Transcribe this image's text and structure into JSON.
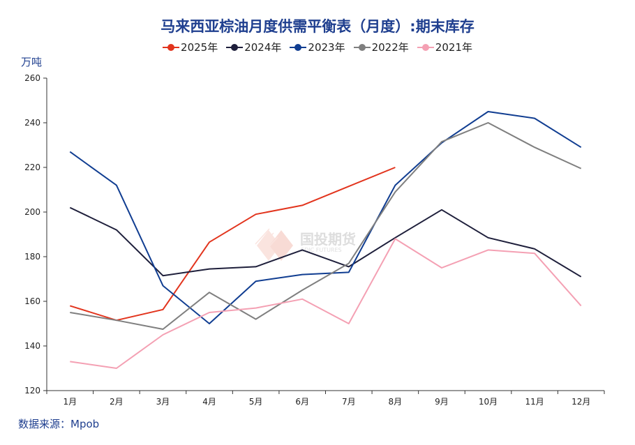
{
  "title": "马来西亚棕油月度供需平衡表（月度）:期末库存",
  "unit_label": "万吨",
  "source": "数据来源：Mpob",
  "watermark": {
    "cn": "国投期货",
    "en": "SDIC FUTURES"
  },
  "chart_data": {
    "type": "line",
    "title": "马来西亚棕油月度供需平衡表（月度）:期末库存",
    "ylabel": "万吨",
    "xlabel": "",
    "categories": [
      "1月",
      "2月",
      "3月",
      "4月",
      "5月",
      "6月",
      "7月",
      "8月",
      "9月",
      "10月",
      "11月",
      "12月"
    ],
    "ylim": [
      120,
      260
    ],
    "yticks": [
      120,
      140,
      160,
      180,
      200,
      220,
      240,
      260
    ],
    "legend_position": "top-center",
    "grid": false,
    "series": [
      {
        "name": "2025年",
        "color": "#e2341d",
        "values": [
          158,
          151.5,
          156.3,
          186.5,
          199,
          203,
          211.5,
          220,
          null,
          null,
          null,
          null
        ]
      },
      {
        "name": "2024年",
        "color": "#1e1f3b",
        "values": [
          202,
          192,
          171.5,
          174.5,
          175.5,
          183,
          175.5,
          188.5,
          201,
          188.5,
          183.5,
          171
        ]
      },
      {
        "name": "2023年",
        "color": "#103d91",
        "values": [
          227,
          212,
          167,
          150,
          169,
          172,
          173,
          212,
          231,
          245,
          242,
          229
        ]
      },
      {
        "name": "2022年",
        "color": "#7f7f7f",
        "values": [
          155,
          151.5,
          147.5,
          164,
          152,
          165,
          177,
          209,
          231.5,
          240,
          229,
          219.5
        ]
      },
      {
        "name": "2021年",
        "color": "#f4a0b3",
        "values": [
          133,
          130,
          145,
          155,
          157,
          161,
          150,
          188,
          175,
          183,
          181.5,
          158
        ]
      }
    ]
  }
}
